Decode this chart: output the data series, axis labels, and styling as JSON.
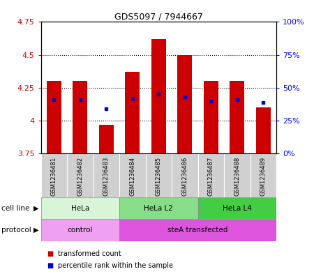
{
  "title": "GDS5097 / 7944667",
  "samples": [
    "GSM1236481",
    "GSM1236482",
    "GSM1236483",
    "GSM1236484",
    "GSM1236485",
    "GSM1236486",
    "GSM1236487",
    "GSM1236488",
    "GSM1236489"
  ],
  "red_values": [
    4.3,
    4.3,
    3.97,
    4.37,
    4.62,
    4.5,
    4.3,
    4.3,
    4.1
  ],
  "blue_values": [
    4.16,
    4.16,
    4.09,
    4.17,
    4.2,
    4.18,
    4.15,
    4.16,
    4.14
  ],
  "bar_bottom": 3.75,
  "ylim": [
    3.75,
    4.75
  ],
  "yticks_left": [
    3.75,
    4.0,
    4.25,
    4.5,
    4.75
  ],
  "ytick_labels_left": [
    "3.75",
    "4",
    "4.25",
    "4.5",
    "4.75"
  ],
  "yticks_right_vals": [
    0,
    25,
    50,
    75,
    100
  ],
  "ytick_labels_right": [
    "0%",
    "25%",
    "50%",
    "75%",
    "100%"
  ],
  "gridlines": [
    4.0,
    4.25,
    4.5
  ],
  "cell_line_groups": [
    {
      "label": "HeLa",
      "start": 0,
      "end": 3,
      "color": "#d8f5d8"
    },
    {
      "label": "HeLa L2",
      "start": 3,
      "end": 6,
      "color": "#88dd88"
    },
    {
      "label": "HeLa L4",
      "start": 6,
      "end": 9,
      "color": "#44cc44"
    }
  ],
  "protocol_groups": [
    {
      "label": "control",
      "start": 0,
      "end": 3,
      "color": "#f0a0f0"
    },
    {
      "label": "steA transfected",
      "start": 3,
      "end": 9,
      "color": "#dd55dd"
    }
  ],
  "red_color": "#cc0000",
  "blue_color": "#0000cc",
  "bar_width": 0.55,
  "sample_bg_color": "#d0d0d0",
  "legend_red": "transformed count",
  "legend_blue": "percentile rank within the sample",
  "cell_line_label": "cell line",
  "protocol_label": "protocol"
}
